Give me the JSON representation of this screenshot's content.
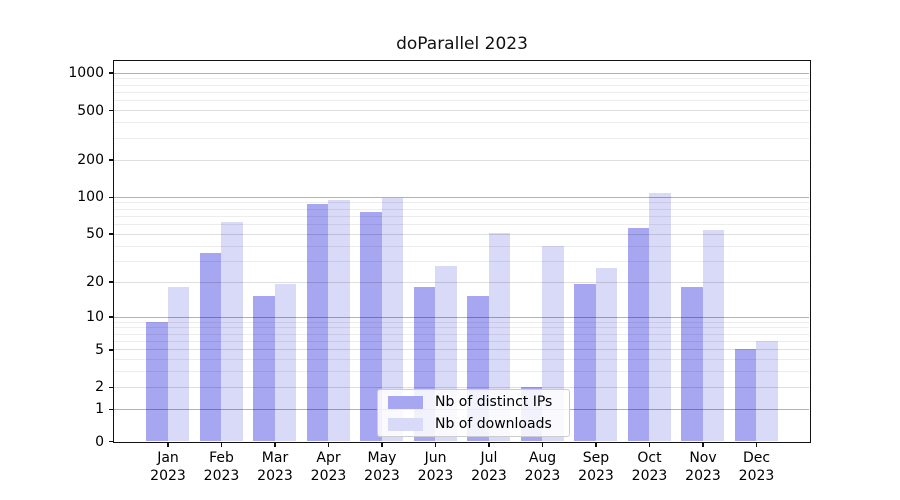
{
  "title": "doParallel 2023",
  "legend": {
    "items": [
      {
        "label": "Nb of distinct IPs",
        "color": "#a6a6f1"
      },
      {
        "label": "Nb of downloads",
        "color": "#d9d9f8"
      }
    ]
  },
  "chart_data": {
    "type": "bar",
    "title": "doParallel 2023",
    "categories": [
      "Jan 2023",
      "Feb 2023",
      "Mar 2023",
      "Apr 2023",
      "May 2023",
      "Jun 2023",
      "Jul 2023",
      "Aug 2023",
      "Sep 2023",
      "Oct 2023",
      "Nov 2023",
      "Dec 2023"
    ],
    "series": [
      {
        "name": "Nb of distinct IPs",
        "color": "#a6a6f1",
        "values": [
          9,
          35,
          15,
          88,
          75,
          18,
          15,
          2,
          19,
          56,
          18,
          5
        ]
      },
      {
        "name": "Nb of downloads",
        "color": "#d9d9f8",
        "values": [
          18,
          62,
          19,
          94,
          97,
          27,
          51,
          40,
          26,
          108,
          54,
          6
        ]
      }
    ],
    "xlabel": "",
    "ylabel": "",
    "yscale": "log1p",
    "yticks": [
      1000,
      500,
      200,
      100,
      50,
      20,
      10,
      5,
      2,
      1,
      0
    ],
    "ylim": [
      0,
      1280
    ],
    "grid": true,
    "grid_on_top": true,
    "legend_position": "lower center",
    "colors": {
      "axis": "#111111",
      "background": "#ffffff",
      "grid_major": "#b3b3b3",
      "grid_minor": "#ededed"
    }
  }
}
